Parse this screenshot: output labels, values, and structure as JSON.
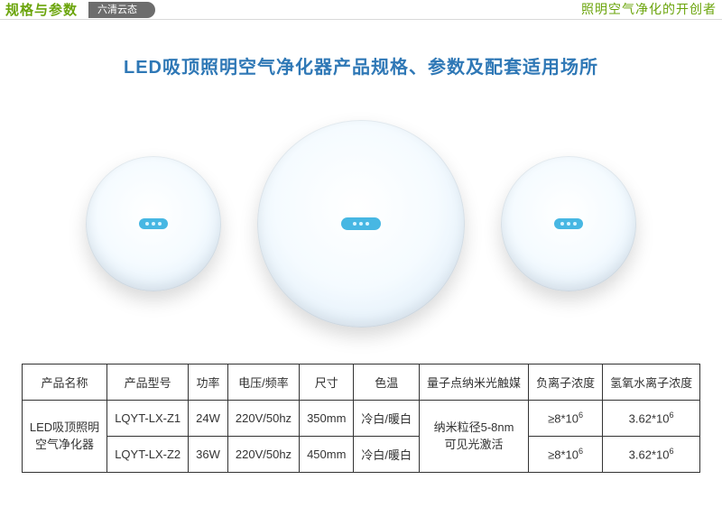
{
  "topbar": {
    "left": "规格与参数",
    "pill": "六清云态",
    "right": "照明空气净化的开创者"
  },
  "headline": "LED吸顶照明空气净化器产品规格、参数及配套适用场所",
  "lamps": {
    "badge_color": "#47b7e3",
    "gradient_inner": "#ffffff",
    "gradient_outer": "#dbeaf6"
  },
  "table": {
    "headers": [
      "产品名称",
      "产品型号",
      "功率",
      "电压/频率",
      "尺寸",
      "色温",
      "量子点纳米光触媒",
      "负离子浓度",
      "氢氧水离子浓度"
    ],
    "productNameLine1": "LED吸顶照明",
    "productNameLine2": "空气净化器",
    "quantumLine1": "纳米粒径5-8nm",
    "quantumLine2": "可见光激活",
    "rows": [
      {
        "model": "LQYT-LX-Z1",
        "power": "24W",
        "volt": "220V/50hz",
        "size": "350mm",
        "cct": "冷白/暖白",
        "neg": "≥8*10",
        "negExp": "6",
        "hyd": "3.62*10",
        "hydExp": "6"
      },
      {
        "model": "LQYT-LX-Z2",
        "power": "36W",
        "volt": "220V/50hz",
        "size": "450mm",
        "cct": "冷白/暖白",
        "neg": "≥8*10",
        "negExp": "6",
        "hyd": "3.62*10",
        "hydExp": "6"
      }
    ]
  }
}
